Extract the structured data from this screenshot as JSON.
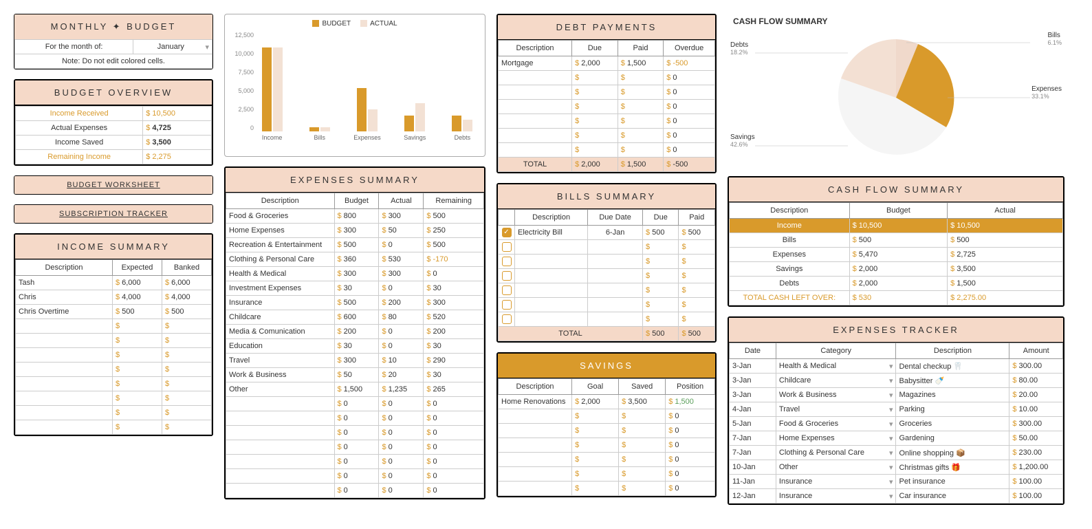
{
  "colors": {
    "gold": "#d99a2b",
    "peach": "#f5d9c8",
    "lightpeach": "#f3e1d4"
  },
  "monthly": {
    "title": "MONTHLY ✦ BUDGET",
    "monthLabel": "For the month of:",
    "month": "January",
    "note": "Note: Do not edit colored cells."
  },
  "overview": {
    "title": "BUDGET OVERVIEW",
    "rows": [
      {
        "label": "Income Received",
        "val": "10,500",
        "hl": true
      },
      {
        "label": "Actual Expenses",
        "val": "4,725"
      },
      {
        "label": "Income Saved",
        "val": "3,500"
      },
      {
        "label": "Remaining Income",
        "val": "2,275",
        "hl": true
      }
    ]
  },
  "links": {
    "worksheet": "BUDGET WORKSHEET",
    "subs": "SUBSCRIPTION TRACKER"
  },
  "income": {
    "title": "INCOME SUMMARY",
    "cols": [
      "Description",
      "Expected",
      "Banked"
    ],
    "rows": [
      {
        "d": "Tash",
        "e": "6,000",
        "b": "6,000"
      },
      {
        "d": "Chris",
        "e": "4,000",
        "b": "4,000"
      },
      {
        "d": "Chris Overtime",
        "e": "500",
        "b": "500"
      },
      {
        "d": "",
        "e": "",
        "b": ""
      },
      {
        "d": "",
        "e": "",
        "b": ""
      },
      {
        "d": "",
        "e": "",
        "b": ""
      },
      {
        "d": "",
        "e": "",
        "b": ""
      },
      {
        "d": "",
        "e": "",
        "b": ""
      },
      {
        "d": "",
        "e": "",
        "b": ""
      },
      {
        "d": "",
        "e": "",
        "b": ""
      },
      {
        "d": "",
        "e": "",
        "b": ""
      }
    ]
  },
  "barChart": {
    "legend": [
      "BUDGET",
      "ACTUAL"
    ],
    "colors": [
      "#d99a2b",
      "#f3e1d4"
    ],
    "ymax": 12500,
    "yticks": [
      "12,500",
      "10,000",
      "7,500",
      "5,000",
      "2,500",
      "0"
    ],
    "cats": [
      "Income",
      "Bills",
      "Expenses",
      "Savings",
      "Debts"
    ],
    "budget": [
      10500,
      500,
      5470,
      2000,
      2000
    ],
    "actual": [
      10500,
      500,
      2725,
      3500,
      1500
    ]
  },
  "expenses": {
    "title": "EXPENSES SUMMARY",
    "cols": [
      "Description",
      "Budget",
      "Actual",
      "Remaining"
    ],
    "rows": [
      {
        "d": "Food & Groceries",
        "b": "800",
        "a": "300",
        "r": "500"
      },
      {
        "d": "Home Expenses",
        "b": "300",
        "a": "50",
        "r": "250"
      },
      {
        "d": "Recreation & Entertainment",
        "b": "500",
        "a": "0",
        "r": "500"
      },
      {
        "d": "Clothing & Personal Care",
        "b": "360",
        "a": "530",
        "r": "-170",
        "neg": true
      },
      {
        "d": "Health & Medical",
        "b": "300",
        "a": "300",
        "r": "0"
      },
      {
        "d": "Investment Expenses",
        "b": "30",
        "a": "0",
        "r": "30"
      },
      {
        "d": "Insurance",
        "b": "500",
        "a": "200",
        "r": "300"
      },
      {
        "d": "Childcare",
        "b": "600",
        "a": "80",
        "r": "520"
      },
      {
        "d": "Media & Comunication",
        "b": "200",
        "a": "0",
        "r": "200"
      },
      {
        "d": "Education",
        "b": "30",
        "a": "0",
        "r": "30"
      },
      {
        "d": "Travel",
        "b": "300",
        "a": "10",
        "r": "290"
      },
      {
        "d": "Work & Business",
        "b": "50",
        "a": "20",
        "r": "30"
      },
      {
        "d": "Other",
        "b": "1,500",
        "a": "1,235",
        "r": "265"
      },
      {
        "d": "",
        "b": "0",
        "a": "0",
        "r": "0"
      },
      {
        "d": "",
        "b": "0",
        "a": "0",
        "r": "0"
      },
      {
        "d": "",
        "b": "0",
        "a": "0",
        "r": "0"
      },
      {
        "d": "",
        "b": "0",
        "a": "0",
        "r": "0"
      },
      {
        "d": "",
        "b": "0",
        "a": "0",
        "r": "0"
      },
      {
        "d": "",
        "b": "0",
        "a": "0",
        "r": "0"
      },
      {
        "d": "",
        "b": "0",
        "a": "0",
        "r": "0"
      }
    ]
  },
  "debt": {
    "title": "DEBT PAYMENTS",
    "cols": [
      "Description",
      "Due",
      "Paid",
      "Overdue"
    ],
    "rows": [
      {
        "d": "Mortgage",
        "due": "2,000",
        "paid": "1,500",
        "over": "-500",
        "neg": true
      },
      {
        "d": "",
        "due": "",
        "paid": "",
        "over": "0"
      },
      {
        "d": "",
        "due": "",
        "paid": "",
        "over": "0"
      },
      {
        "d": "",
        "due": "",
        "paid": "",
        "over": "0"
      },
      {
        "d": "",
        "due": "",
        "paid": "",
        "over": "0"
      },
      {
        "d": "",
        "due": "",
        "paid": "",
        "over": "0"
      },
      {
        "d": "",
        "due": "",
        "paid": "",
        "over": "0"
      }
    ],
    "totLabel": "TOTAL",
    "totDue": "2,000",
    "totPaid": "1,500",
    "totOver": "-500"
  },
  "bills": {
    "title": "BILLS SUMMARY",
    "cols": [
      "Description",
      "Due Date",
      "Due",
      "Paid"
    ],
    "rows": [
      {
        "chk": true,
        "d": "Electricity Bill",
        "date": "6-Jan",
        "due": "500",
        "paid": "500"
      },
      {
        "chk": false,
        "d": "",
        "date": "",
        "due": "",
        "paid": ""
      },
      {
        "chk": false,
        "d": "",
        "date": "",
        "due": "",
        "paid": ""
      },
      {
        "chk": false,
        "d": "",
        "date": "",
        "due": "",
        "paid": ""
      },
      {
        "chk": false,
        "d": "",
        "date": "",
        "due": "",
        "paid": ""
      },
      {
        "chk": false,
        "d": "",
        "date": "",
        "due": "",
        "paid": ""
      },
      {
        "chk": false,
        "d": "",
        "date": "",
        "due": "",
        "paid": ""
      }
    ],
    "totLabel": "TOTAL",
    "totDue": "500",
    "totPaid": "500"
  },
  "savings": {
    "title": "SAVINGS",
    "cols": [
      "Description",
      "Goal",
      "Saved",
      "Position"
    ],
    "rows": [
      {
        "d": "Home Renovations",
        "g": "2,000",
        "s": "3,500",
        "p": "1,500",
        "pos": true
      },
      {
        "d": "",
        "g": "",
        "s": "",
        "p": "0"
      },
      {
        "d": "",
        "g": "",
        "s": "",
        "p": "0"
      },
      {
        "d": "",
        "g": "",
        "s": "",
        "p": "0"
      },
      {
        "d": "",
        "g": "",
        "s": "",
        "p": "0"
      },
      {
        "d": "",
        "g": "",
        "s": "",
        "p": "0"
      },
      {
        "d": "",
        "g": "",
        "s": "",
        "p": "0"
      }
    ]
  },
  "pie": {
    "title": "CASH FLOW SUMMARY",
    "labels": [
      {
        "name": "Bills",
        "pct": "6.1%",
        "x": "right",
        "y": "22%"
      },
      {
        "name": "Debts",
        "pct": "18.2%",
        "x": "left",
        "y": "18%"
      },
      {
        "name": "Savings",
        "pct": "42.6%",
        "x": "left",
        "y": "78%"
      },
      {
        "name": "Expenses",
        "pct": "33.1%",
        "x": "right",
        "y": "48%"
      }
    ]
  },
  "cashflow": {
    "title": "CASH FLOW SUMMARY",
    "cols": [
      "Description",
      "Budget",
      "Actual"
    ],
    "rows": [
      {
        "d": "Income",
        "b": "10,500",
        "a": "10,500",
        "gold": true
      },
      {
        "d": "Bills",
        "b": "500",
        "a": "500"
      },
      {
        "d": "Expenses",
        "b": "5,470",
        "a": "2,725"
      },
      {
        "d": "Savings",
        "b": "2,000",
        "a": "3,500"
      },
      {
        "d": "Debts",
        "b": "2,000",
        "a": "1,500"
      }
    ],
    "leftLabel": "TOTAL CASH LEFT OVER:",
    "leftB": "530",
    "leftA": "2,275.00"
  },
  "tracker": {
    "title": "EXPENSES TRACKER",
    "cols": [
      "Date",
      "Category",
      "Description",
      "Amount"
    ],
    "rows": [
      {
        "dt": "3-Jan",
        "c": "Health & Medical",
        "d": "Dental checkup 🦷",
        "a": "300.00"
      },
      {
        "dt": "3-Jan",
        "c": "Childcare",
        "d": "Babysitter 🍼",
        "a": "80.00"
      },
      {
        "dt": "3-Jan",
        "c": "Work & Business",
        "d": "Magazines",
        "a": "20.00"
      },
      {
        "dt": "4-Jan",
        "c": "Travel",
        "d": "Parking",
        "a": "10.00"
      },
      {
        "dt": "5-Jan",
        "c": "Food & Groceries",
        "d": "Groceries",
        "a": "300.00"
      },
      {
        "dt": "7-Jan",
        "c": "Home Expenses",
        "d": "Gardening",
        "a": "50.00"
      },
      {
        "dt": "7-Jan",
        "c": "Clothing & Personal Care",
        "d": "Online shopping 📦",
        "a": "230.00"
      },
      {
        "dt": "10-Jan",
        "c": "Other",
        "d": "Christmas gifts 🎁",
        "a": "1,200.00"
      },
      {
        "dt": "11-Jan",
        "c": "Insurance",
        "d": "Pet insurance",
        "a": "100.00"
      },
      {
        "dt": "12-Jan",
        "c": "Insurance",
        "d": "Car insurance",
        "a": "100.00"
      }
    ]
  }
}
